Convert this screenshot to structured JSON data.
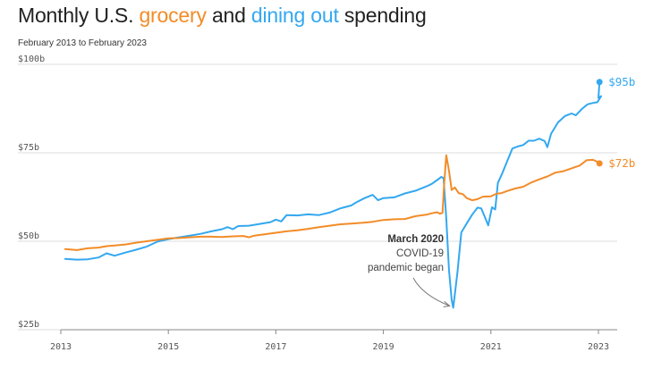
{
  "header": {
    "title_part1": "Monthly U.S. ",
    "title_grocery": "grocery",
    "title_part2": " and ",
    "title_dining": "dining out",
    "title_part3": " spending",
    "subtitle": "February 2013 to February 2023"
  },
  "colors": {
    "grocery": "#f28c28",
    "dining": "#33a8f0",
    "grid": "#dddddd",
    "axis": "#888888"
  },
  "chart_data": {
    "type": "line",
    "title": "Monthly U.S. grocery and dining out spending",
    "subtitle": "February 2013 to February 2023",
    "xlabel": "",
    "ylabel": "",
    "xlim": [
      2013,
      2023.1
    ],
    "ylim": [
      25,
      100
    ],
    "y_ticks": [
      25,
      50,
      75,
      100
    ],
    "y_tick_labels": [
      "$25b",
      "$50b",
      "$75b",
      "$100b"
    ],
    "x_ticks": [
      2013,
      2015,
      2017,
      2019,
      2021,
      2023
    ],
    "x_tick_labels": [
      "2013",
      "2015",
      "2017",
      "2019",
      "2021",
      "2023"
    ],
    "grid": true,
    "series": [
      {
        "name": "Dining out",
        "color": "#33a8f0",
        "end_label": "$95b",
        "points": [
          [
            2013.08,
            45.0
          ],
          [
            2013.3,
            44.8
          ],
          [
            2013.5,
            44.9
          ],
          [
            2013.7,
            45.4
          ],
          [
            2013.85,
            46.6
          ],
          [
            2014.0,
            45.9
          ],
          [
            2014.2,
            46.8
          ],
          [
            2014.4,
            47.6
          ],
          [
            2014.6,
            48.5
          ],
          [
            2014.8,
            49.9
          ],
          [
            2015.0,
            50.6
          ],
          [
            2015.2,
            51.1
          ],
          [
            2015.4,
            51.6
          ],
          [
            2015.6,
            52.1
          ],
          [
            2015.8,
            52.8
          ],
          [
            2016.0,
            53.4
          ],
          [
            2016.1,
            54.0
          ],
          [
            2016.2,
            53.4
          ],
          [
            2016.3,
            54.3
          ],
          [
            2016.5,
            54.4
          ],
          [
            2016.7,
            54.9
          ],
          [
            2016.9,
            55.4
          ],
          [
            2017.0,
            56.1
          ],
          [
            2017.1,
            55.6
          ],
          [
            2017.2,
            57.4
          ],
          [
            2017.4,
            57.3
          ],
          [
            2017.6,
            57.6
          ],
          [
            2017.8,
            57.4
          ],
          [
            2018.0,
            58.1
          ],
          [
            2018.2,
            59.3
          ],
          [
            2018.4,
            60.1
          ],
          [
            2018.5,
            61.0
          ],
          [
            2018.65,
            62.2
          ],
          [
            2018.8,
            63.1
          ],
          [
            2018.9,
            61.6
          ],
          [
            2019.0,
            62.2
          ],
          [
            2019.2,
            62.4
          ],
          [
            2019.4,
            63.5
          ],
          [
            2019.6,
            64.3
          ],
          [
            2019.8,
            65.5
          ],
          [
            2019.9,
            66.2
          ],
          [
            2020.0,
            67.3
          ],
          [
            2020.08,
            68.2
          ],
          [
            2020.12,
            67.8
          ],
          [
            2020.17,
            56.5
          ],
          [
            2020.22,
            42.0
          ],
          [
            2020.27,
            33.5
          ],
          [
            2020.3,
            31.2
          ],
          [
            2020.38,
            41.5
          ],
          [
            2020.45,
            52.5
          ],
          [
            2020.55,
            55.0
          ],
          [
            2020.65,
            57.5
          ],
          [
            2020.75,
            59.5
          ],
          [
            2020.82,
            59.3
          ],
          [
            2020.9,
            56.4
          ],
          [
            2020.95,
            54.5
          ],
          [
            2021.02,
            59.6
          ],
          [
            2021.08,
            59.0
          ],
          [
            2021.13,
            66.5
          ],
          [
            2021.2,
            68.8
          ],
          [
            2021.3,
            72.5
          ],
          [
            2021.4,
            76.2
          ],
          [
            2021.5,
            76.8
          ],
          [
            2021.6,
            77.2
          ],
          [
            2021.7,
            78.4
          ],
          [
            2021.8,
            78.4
          ],
          [
            2021.9,
            79.0
          ],
          [
            2022.0,
            78.3
          ],
          [
            2022.05,
            76.6
          ],
          [
            2022.12,
            80.4
          ],
          [
            2022.25,
            83.6
          ],
          [
            2022.38,
            85.4
          ],
          [
            2022.5,
            86.1
          ],
          [
            2022.58,
            85.6
          ],
          [
            2022.7,
            87.5
          ],
          [
            2022.8,
            88.7
          ],
          [
            2022.9,
            89.1
          ],
          [
            2022.98,
            89.3
          ],
          [
            2023.05,
            91.0
          ],
          [
            2023.0,
            90.5
          ],
          [
            2023.02,
            95.0
          ]
        ]
      },
      {
        "name": "Grocery",
        "color": "#f28c28",
        "end_label": "$72b",
        "points": [
          [
            2013.08,
            47.8
          ],
          [
            2013.3,
            47.5
          ],
          [
            2013.5,
            48.0
          ],
          [
            2013.7,
            48.2
          ],
          [
            2013.85,
            48.6
          ],
          [
            2014.0,
            48.8
          ],
          [
            2014.2,
            49.1
          ],
          [
            2014.4,
            49.6
          ],
          [
            2014.6,
            50.0
          ],
          [
            2014.8,
            50.4
          ],
          [
            2015.0,
            50.8
          ],
          [
            2015.2,
            50.9
          ],
          [
            2015.4,
            51.1
          ],
          [
            2015.6,
            51.3
          ],
          [
            2015.8,
            51.3
          ],
          [
            2016.0,
            51.2
          ],
          [
            2016.2,
            51.4
          ],
          [
            2016.4,
            51.5
          ],
          [
            2016.5,
            51.1
          ],
          [
            2016.6,
            51.6
          ],
          [
            2016.8,
            52.0
          ],
          [
            2017.0,
            52.4
          ],
          [
            2017.2,
            52.8
          ],
          [
            2017.4,
            53.1
          ],
          [
            2017.6,
            53.5
          ],
          [
            2017.8,
            54.0
          ],
          [
            2018.0,
            54.4
          ],
          [
            2018.2,
            54.8
          ],
          [
            2018.4,
            55.0
          ],
          [
            2018.6,
            55.2
          ],
          [
            2018.8,
            55.5
          ],
          [
            2019.0,
            56.0
          ],
          [
            2019.2,
            56.2
          ],
          [
            2019.4,
            56.3
          ],
          [
            2019.6,
            57.1
          ],
          [
            2019.8,
            57.5
          ],
          [
            2019.9,
            57.9
          ],
          [
            2020.0,
            58.2
          ],
          [
            2020.05,
            57.8
          ],
          [
            2020.1,
            58.0
          ],
          [
            2020.13,
            66.0
          ],
          [
            2020.17,
            74.3
          ],
          [
            2020.22,
            70.0
          ],
          [
            2020.27,
            64.5
          ],
          [
            2020.33,
            65.2
          ],
          [
            2020.4,
            63.6
          ],
          [
            2020.48,
            63.3
          ],
          [
            2020.55,
            62.2
          ],
          [
            2020.65,
            61.6
          ],
          [
            2020.75,
            61.9
          ],
          [
            2020.85,
            62.6
          ],
          [
            2021.0,
            62.7
          ],
          [
            2021.1,
            63.4
          ],
          [
            2021.2,
            63.6
          ],
          [
            2021.3,
            64.2
          ],
          [
            2021.45,
            64.9
          ],
          [
            2021.6,
            65.4
          ],
          [
            2021.75,
            66.6
          ],
          [
            2021.9,
            67.5
          ],
          [
            2022.05,
            68.3
          ],
          [
            2022.2,
            69.4
          ],
          [
            2022.35,
            69.8
          ],
          [
            2022.5,
            70.6
          ],
          [
            2022.65,
            71.4
          ],
          [
            2022.78,
            72.9
          ],
          [
            2022.9,
            73.0
          ],
          [
            2023.0,
            72.3
          ],
          [
            2023.02,
            72.0
          ]
        ]
      }
    ],
    "annotation": {
      "x": 2020.3,
      "y": 31.2,
      "lines": [
        "March 2020",
        "COVID-19",
        "pandemic began"
      ]
    }
  }
}
